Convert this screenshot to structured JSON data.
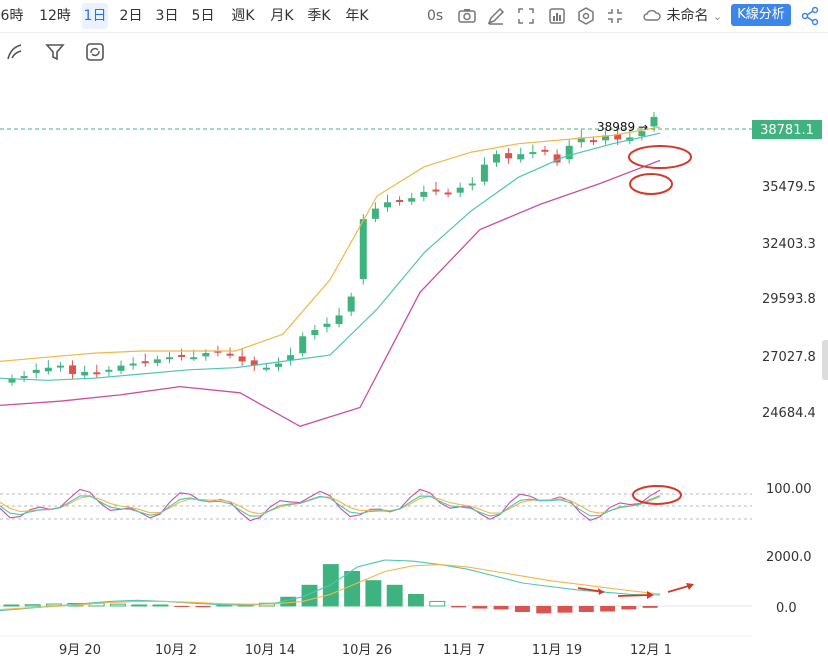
{
  "toolbar": {
    "timeframes": [
      "6時",
      "12時",
      "1日",
      "2日",
      "3日",
      "5日",
      "週K",
      "月K",
      "季K",
      "年K"
    ],
    "active_timeframe": "1日",
    "replay_label": "0s",
    "layout_name": "未命名",
    "analysis_button": "K線分析",
    "icons": [
      "camera-icon",
      "edit-icon",
      "fullscreen-bracket-icon",
      "indicator-icon",
      "settings-icon",
      "expand-icon",
      "cloud-icon",
      "share-icon"
    ]
  },
  "subtoolbar": {
    "icons": [
      "draw-icon",
      "filter-icon",
      "refresh-icon"
    ]
  },
  "colors": {
    "up": "#3fb37f",
    "down": "#d9534f",
    "accent": "#3b86e8",
    "ma_fast": "#f0b84a",
    "ma_mid": "#4fc6b0",
    "ma_slow": "#c94fa5",
    "annotation": "#d33a2c"
  },
  "main_chart": {
    "price_axis": [
      "35479.5",
      "32403.3",
      "29593.8",
      "27027.8",
      "24684.4"
    ],
    "current_price": "38781.1",
    "high_marker": "38989",
    "high_arrow": "→"
  },
  "oscillator": {
    "level_label": "100.00"
  },
  "macd": {
    "axis": [
      "2000.0",
      "0.0"
    ]
  },
  "date_axis": [
    "9月 20",
    "10月 2",
    "10月 14",
    "10月 26",
    "11月 7",
    "11月 19",
    "12月 1"
  ],
  "chart_data": {
    "type": "candlestick",
    "x_dates": [
      "9月 20",
      "10月 2",
      "10月 14",
      "10月 26",
      "11月 7",
      "11月 19",
      "12月 1"
    ],
    "y_ticks": [
      35479.5,
      32403.3,
      29593.8,
      27027.8,
      24684.4
    ],
    "current_price": 38781.1,
    "period_high": 38989,
    "close_trend": [
      26300,
      26400,
      26700,
      26800,
      26900,
      26500,
      26600,
      26500,
      26700,
      26900,
      27000,
      27100,
      27200,
      27300,
      27400,
      27300,
      27500,
      27600,
      27400,
      27100,
      26900,
      26800,
      27000,
      27400,
      28300,
      28600,
      28900,
      29300,
      30200,
      33900,
      34400,
      34700,
      34800,
      34900,
      35200,
      35300,
      35100,
      35400,
      35600,
      36500,
      37000,
      36800,
      37000,
      37100,
      37200,
      36600,
      37400,
      37800,
      37600,
      37900,
      37700,
      37800,
      38100,
      38781
    ],
    "ma_fast": [
      27100,
      27300,
      27500,
      27600,
      27600,
      27600,
      28400,
      31000,
      35000,
      36400,
      37100,
      37500,
      37700,
      37900,
      38300
    ],
    "ma_mid": [
      26300,
      26200,
      26300,
      26500,
      26700,
      26800,
      27100,
      27400,
      29600,
      32300,
      34300,
      35900,
      36900,
      37500,
      38000
    ],
    "ma_slow": [
      25000,
      25200,
      25500,
      25900,
      25600,
      24000,
      24900,
      30400,
      33400,
      34600,
      35600,
      36700
    ],
    "macd_histogram": [
      30,
      55,
      85,
      110,
      120,
      80,
      40,
      10,
      -40,
      -55,
      20,
      60,
      120,
      380,
      900,
      1800,
      1500,
      1100,
      900,
      500,
      200,
      -60,
      -110,
      -150,
      -260,
      -320,
      -290,
      -260,
      -240,
      -150,
      -80
    ],
    "oscillator_level": 100.0
  }
}
